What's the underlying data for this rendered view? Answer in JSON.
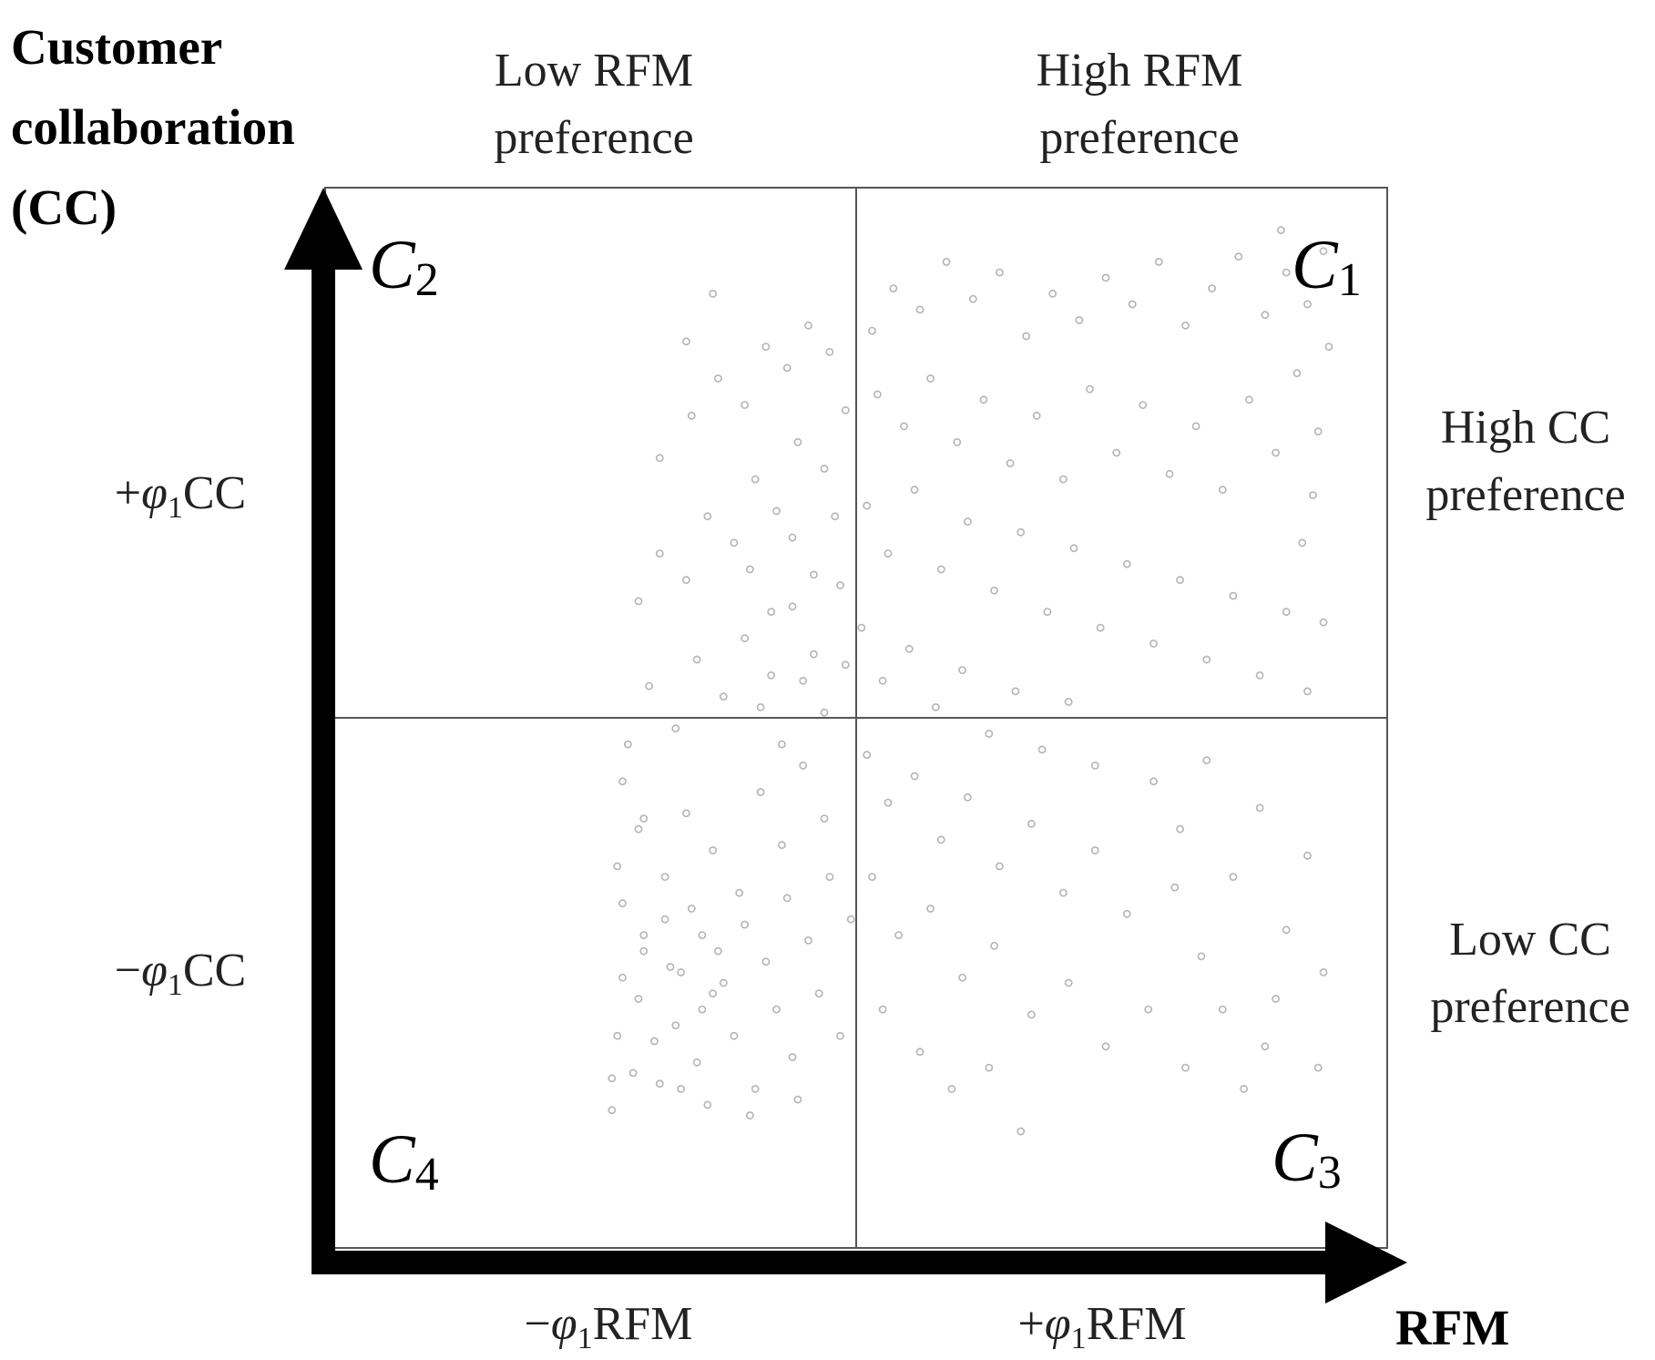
{
  "chart_data": {
    "type": "scatter",
    "y_axis_title": [
      "Customer",
      "collaboration",
      "(CC)"
    ],
    "x_axis_title": "RFM",
    "top_labels": [
      {
        "lines": [
          "Low RFM",
          "preference"
        ]
      },
      {
        "lines": [
          "High RFM",
          "preference"
        ]
      }
    ],
    "right_labels": [
      {
        "lines": [
          "High CC",
          "preference"
        ]
      },
      {
        "lines": [
          "Low CC",
          "preference"
        ]
      }
    ],
    "y_ticks": [
      {
        "prefix": "+",
        "symbol": "φ",
        "sub": "1",
        "suffix": "CC"
      },
      {
        "prefix": "−",
        "symbol": "φ",
        "sub": "1",
        "suffix": "CC"
      }
    ],
    "x_ticks": [
      {
        "prefix": "−",
        "symbol": "φ",
        "sub": "1",
        "suffix": "RFM"
      },
      {
        "prefix": "+",
        "symbol": "φ",
        "sub": "1",
        "suffix": "RFM"
      }
    ],
    "quadrants": [
      {
        "base": "C",
        "sub": "2",
        "position": "top-left"
      },
      {
        "base": "C",
        "sub": "1",
        "position": "top-right"
      },
      {
        "base": "C",
        "sub": "4",
        "position": "bottom-left"
      },
      {
        "base": "C",
        "sub": "3",
        "position": "bottom-right"
      }
    ],
    "xlim": [
      -1,
      1
    ],
    "ylim": [
      -1,
      1
    ],
    "grid": false,
    "colors": {
      "points": "#b4b4b4",
      "axis": "#000000",
      "frame": "#555555",
      "background": "#ffffff"
    },
    "series": [
      {
        "values": [
          [
            -0.46,
            -0.74
          ],
          [
            -0.42,
            -0.67
          ],
          [
            -0.38,
            -0.61
          ],
          [
            -0.33,
            -0.7
          ],
          [
            -0.29,
            -0.55
          ],
          [
            -0.44,
            -0.49
          ],
          [
            -0.4,
            -0.41
          ],
          [
            -0.35,
            -0.47
          ],
          [
            -0.31,
            -0.36
          ],
          [
            -0.26,
            -0.44
          ],
          [
            -0.45,
            -0.28
          ],
          [
            -0.41,
            -0.21
          ],
          [
            -0.36,
            -0.3
          ],
          [
            -0.32,
            -0.18
          ],
          [
            -0.27,
            -0.25
          ],
          [
            -0.22,
            -0.33
          ],
          [
            -0.18,
            -0.14
          ],
          [
            -0.14,
            -0.24
          ],
          [
            -0.1,
            -0.09
          ],
          [
            -0.06,
            -0.19
          ],
          [
            -0.43,
            -0.05
          ],
          [
            -0.39,
            0.06
          ],
          [
            -0.34,
            -0.02
          ],
          [
            -0.3,
            0.11
          ],
          [
            -0.25,
            0.04
          ],
          [
            -0.21,
            0.15
          ],
          [
            -0.16,
            0.08
          ],
          [
            -0.12,
            0.21
          ],
          [
            -0.08,
            0.12
          ],
          [
            -0.03,
            0.25
          ],
          [
            -0.41,
            0.22
          ],
          [
            -0.37,
            0.31
          ],
          [
            -0.32,
            0.26
          ],
          [
            -0.28,
            0.38
          ],
          [
            -0.23,
            0.33
          ],
          [
            -0.19,
            0.45
          ],
          [
            -0.15,
            0.39
          ],
          [
            -0.11,
            0.52
          ],
          [
            -0.06,
            0.47
          ],
          [
            -0.02,
            0.58
          ],
          [
            -0.37,
            0.49
          ],
          [
            -0.31,
            0.57
          ],
          [
            -0.26,
            0.64
          ],
          [
            -0.21,
            0.59
          ],
          [
            -0.17,
            0.7
          ],
          [
            -0.13,
            0.66
          ],
          [
            -0.09,
            0.74
          ],
          [
            -0.05,
            0.69
          ],
          [
            -0.32,
            0.71
          ],
          [
            -0.27,
            0.8
          ],
          [
            0.03,
            0.73
          ],
          [
            0.07,
            0.81
          ],
          [
            0.12,
            0.77
          ],
          [
            0.17,
            0.86
          ],
          [
            0.22,
            0.79
          ],
          [
            0.27,
            0.84
          ],
          [
            0.32,
            0.72
          ],
          [
            0.37,
            0.8
          ],
          [
            0.42,
            0.75
          ],
          [
            0.47,
            0.83
          ],
          [
            0.52,
            0.78
          ],
          [
            0.57,
            0.86
          ],
          [
            0.62,
            0.74
          ],
          [
            0.67,
            0.81
          ],
          [
            0.72,
            0.87
          ],
          [
            0.77,
            0.76
          ],
          [
            0.81,
            0.84
          ],
          [
            0.85,
            0.78
          ],
          [
            0.88,
            0.88
          ],
          [
            0.8,
            0.92
          ],
          [
            0.04,
            0.61
          ],
          [
            0.09,
            0.55
          ],
          [
            0.14,
            0.64
          ],
          [
            0.19,
            0.52
          ],
          [
            0.24,
            0.6
          ],
          [
            0.29,
            0.48
          ],
          [
            0.34,
            0.57
          ],
          [
            0.39,
            0.45
          ],
          [
            0.44,
            0.62
          ],
          [
            0.49,
            0.5
          ],
          [
            0.54,
            0.59
          ],
          [
            0.59,
            0.46
          ],
          [
            0.64,
            0.55
          ],
          [
            0.69,
            0.43
          ],
          [
            0.74,
            0.6
          ],
          [
            0.79,
            0.5
          ],
          [
            0.83,
            0.65
          ],
          [
            0.87,
            0.54
          ],
          [
            0.89,
            0.7
          ],
          [
            0.86,
            0.42
          ],
          [
            0.02,
            0.4
          ],
          [
            0.06,
            0.31
          ],
          [
            0.11,
            0.43
          ],
          [
            0.16,
            0.28
          ],
          [
            0.21,
            0.37
          ],
          [
            0.26,
            0.24
          ],
          [
            0.31,
            0.35
          ],
          [
            0.36,
            0.2
          ],
          [
            0.41,
            0.32
          ],
          [
            0.46,
            0.17
          ],
          [
            0.51,
            0.29
          ],
          [
            0.56,
            0.14
          ],
          [
            0.61,
            0.26
          ],
          [
            0.66,
            0.11
          ],
          [
            0.71,
            0.23
          ],
          [
            0.76,
            0.08
          ],
          [
            0.81,
            0.2
          ],
          [
            0.85,
            0.05
          ],
          [
            0.88,
            0.18
          ],
          [
            0.84,
            0.33
          ],
          [
            0.01,
            0.17
          ],
          [
            0.05,
            0.07
          ],
          [
            0.1,
            0.13
          ],
          [
            0.15,
            0.02
          ],
          [
            0.2,
            0.09
          ],
          [
            0.25,
            -0.03
          ],
          [
            0.3,
            0.05
          ],
          [
            0.35,
            -0.06
          ],
          [
            0.4,
            0.03
          ],
          [
            0.45,
            -0.09
          ],
          [
            0.02,
            -0.07
          ],
          [
            0.06,
            -0.16
          ],
          [
            0.11,
            -0.11
          ],
          [
            0.16,
            -0.23
          ],
          [
            0.21,
            -0.15
          ],
          [
            0.27,
            -0.28
          ],
          [
            0.33,
            -0.2
          ],
          [
            0.39,
            -0.33
          ],
          [
            0.45,
            -0.25
          ],
          [
            0.51,
            -0.37
          ],
          [
            0.03,
            -0.3
          ],
          [
            0.08,
            -0.41
          ],
          [
            0.14,
            -0.36
          ],
          [
            0.2,
            -0.49
          ],
          [
            0.26,
            -0.43
          ],
          [
            0.33,
            -0.56
          ],
          [
            0.4,
            -0.5
          ],
          [
            0.47,
            -0.62
          ],
          [
            0.55,
            -0.55
          ],
          [
            0.62,
            -0.66
          ],
          [
            0.56,
            -0.12
          ],
          [
            0.61,
            -0.21
          ],
          [
            0.66,
            -0.08
          ],
          [
            0.71,
            -0.3
          ],
          [
            0.76,
            -0.17
          ],
          [
            0.81,
            -0.4
          ],
          [
            0.85,
            -0.26
          ],
          [
            0.88,
            -0.48
          ],
          [
            0.69,
            -0.55
          ],
          [
            0.77,
            -0.62
          ],
          [
            0.05,
            -0.55
          ],
          [
            0.12,
            -0.63
          ],
          [
            0.18,
            -0.7
          ],
          [
            0.25,
            -0.66
          ],
          [
            0.31,
            -0.78
          ],
          [
            0.6,
            -0.32
          ],
          [
            0.65,
            -0.45
          ],
          [
            0.73,
            -0.7
          ],
          [
            0.79,
            -0.53
          ],
          [
            0.87,
            -0.66
          ],
          [
            -0.45,
            -0.6
          ],
          [
            -0.41,
            -0.53
          ],
          [
            -0.37,
            -0.69
          ],
          [
            -0.34,
            -0.58
          ],
          [
            -0.3,
            -0.65
          ],
          [
            -0.27,
            -0.52
          ],
          [
            -0.23,
            -0.6
          ],
          [
            -0.19,
            -0.7
          ],
          [
            -0.15,
            -0.55
          ],
          [
            -0.12,
            -0.64
          ],
          [
            -0.44,
            -0.35
          ],
          [
            -0.4,
            -0.44
          ],
          [
            -0.36,
            -0.38
          ],
          [
            -0.33,
            -0.48
          ],
          [
            -0.29,
            -0.41
          ],
          [
            -0.25,
            -0.5
          ],
          [
            -0.21,
            -0.39
          ],
          [
            -0.17,
            -0.46
          ],
          [
            -0.13,
            -0.34
          ],
          [
            -0.09,
            -0.42
          ],
          [
            -0.05,
            -0.3
          ],
          [
            -0.01,
            -0.38
          ],
          [
            -0.07,
            -0.52
          ],
          [
            -0.03,
            -0.6
          ],
          [
            -0.11,
            -0.72
          ],
          [
            -0.2,
            -0.75
          ],
          [
            -0.28,
            -0.73
          ],
          [
            -0.46,
            -0.68
          ],
          [
            -0.44,
            -0.12
          ],
          [
            -0.4,
            -0.19
          ],
          [
            -0.18,
            0.02
          ],
          [
            -0.14,
            -0.05
          ],
          [
            -0.1,
            0.07
          ],
          [
            -0.06,
            0.01
          ],
          [
            -0.02,
            0.1
          ],
          [
            -0.2,
            0.28
          ],
          [
            -0.16,
            0.2
          ],
          [
            -0.12,
            0.34
          ],
          [
            -0.08,
            0.27
          ],
          [
            -0.04,
            0.38
          ]
        ]
      }
    ]
  }
}
